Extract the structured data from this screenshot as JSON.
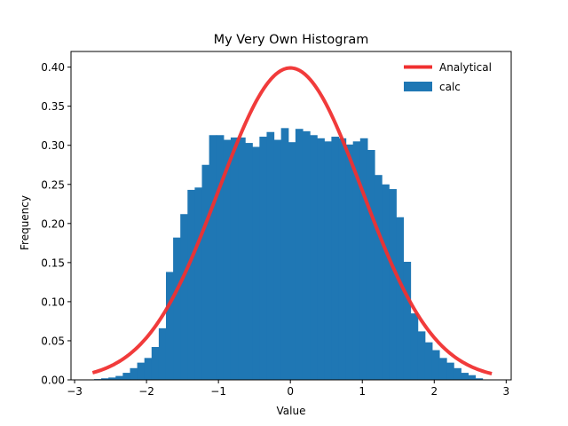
{
  "chart_data": {
    "type": "bar",
    "title": "My Very Own Histogram",
    "xlabel": "Value",
    "ylabel": "Frequency",
    "xlim": [
      -3.05,
      3.07
    ],
    "ylim": [
      0,
      0.42
    ],
    "xticks": [
      -3,
      -2,
      -1,
      0,
      1,
      2,
      3
    ],
    "xtick_labels": [
      "−3",
      "−2",
      "−1",
      "0",
      "1",
      "2",
      "3"
    ],
    "yticks": [
      0.0,
      0.05,
      0.1,
      0.15,
      0.2,
      0.25,
      0.3,
      0.35,
      0.4
    ],
    "ytick_labels": [
      "0.00",
      "0.05",
      "0.10",
      "0.15",
      "0.20",
      "0.25",
      "0.30",
      "0.35",
      "0.40"
    ],
    "grid": false,
    "legend": {
      "placement": "top-right",
      "entries": [
        {
          "label": "Analytical",
          "kind": "line",
          "color": "#f03030"
        },
        {
          "label": "calc",
          "kind": "patch",
          "color": "#1f77b4"
        }
      ]
    },
    "histogram": {
      "name": "calc",
      "color": "#1f77b4",
      "bin_width": 0.1,
      "bins": [
        {
          "x0": -2.73,
          "value": 0.001
        },
        {
          "x0": -2.63,
          "value": 0.002
        },
        {
          "x0": -2.53,
          "value": 0.003
        },
        {
          "x0": -2.43,
          "value": 0.005
        },
        {
          "x0": -2.33,
          "value": 0.009
        },
        {
          "x0": -2.23,
          "value": 0.015
        },
        {
          "x0": -2.13,
          "value": 0.022
        },
        {
          "x0": -2.03,
          "value": 0.028
        },
        {
          "x0": -1.93,
          "value": 0.042
        },
        {
          "x0": -1.83,
          "value": 0.066
        },
        {
          "x0": -1.73,
          "value": 0.138
        },
        {
          "x0": -1.63,
          "value": 0.182
        },
        {
          "x0": -1.53,
          "value": 0.212
        },
        {
          "x0": -1.43,
          "value": 0.243
        },
        {
          "x0": -1.33,
          "value": 0.246
        },
        {
          "x0": -1.23,
          "value": 0.275
        },
        {
          "x0": -1.13,
          "value": 0.313
        },
        {
          "x0": -1.03,
          "value": 0.313
        },
        {
          "x0": -0.93,
          "value": 0.307
        },
        {
          "x0": -0.83,
          "value": 0.31
        },
        {
          "x0": -0.73,
          "value": 0.31
        },
        {
          "x0": -0.63,
          "value": 0.303
        },
        {
          "x0": -0.53,
          "value": 0.298
        },
        {
          "x0": -0.43,
          "value": 0.311
        },
        {
          "x0": -0.33,
          "value": 0.317
        },
        {
          "x0": -0.23,
          "value": 0.307
        },
        {
          "x0": -0.13,
          "value": 0.322
        },
        {
          "x0": -0.03,
          "value": 0.304
        },
        {
          "x0": 0.07,
          "value": 0.321
        },
        {
          "x0": 0.17,
          "value": 0.318
        },
        {
          "x0": 0.27,
          "value": 0.313
        },
        {
          "x0": 0.37,
          "value": 0.309
        },
        {
          "x0": 0.47,
          "value": 0.305
        },
        {
          "x0": 0.57,
          "value": 0.311
        },
        {
          "x0": 0.67,
          "value": 0.309
        },
        {
          "x0": 0.77,
          "value": 0.301
        },
        {
          "x0": 0.87,
          "value": 0.305
        },
        {
          "x0": 0.97,
          "value": 0.309
        },
        {
          "x0": 1.07,
          "value": 0.294
        },
        {
          "x0": 1.17,
          "value": 0.262
        },
        {
          "x0": 1.27,
          "value": 0.25
        },
        {
          "x0": 1.37,
          "value": 0.244
        },
        {
          "x0": 1.47,
          "value": 0.208
        },
        {
          "x0": 1.57,
          "value": 0.151
        },
        {
          "x0": 1.67,
          "value": 0.085
        },
        {
          "x0": 1.77,
          "value": 0.062
        },
        {
          "x0": 1.87,
          "value": 0.048
        },
        {
          "x0": 1.97,
          "value": 0.038
        },
        {
          "x0": 2.07,
          "value": 0.028
        },
        {
          "x0": 2.17,
          "value": 0.022
        },
        {
          "x0": 2.27,
          "value": 0.015
        },
        {
          "x0": 2.37,
          "value": 0.009
        },
        {
          "x0": 2.47,
          "value": 0.006
        },
        {
          "x0": 2.57,
          "value": 0.002
        }
      ]
    },
    "series": [
      {
        "name": "Analytical",
        "kind": "line",
        "color": "#f03030",
        "x_range": [
          -2.75,
          2.8
        ],
        "function": "standard normal pdf"
      }
    ]
  }
}
